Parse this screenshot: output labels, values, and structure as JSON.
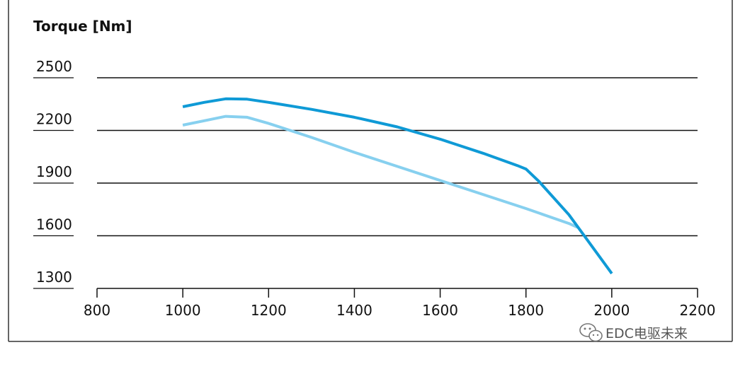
{
  "chart_data": {
    "type": "line",
    "title": "",
    "ylabel": "Torque [Nm]",
    "xlabel": "",
    "xlim": [
      800,
      2200
    ],
    "ylim": [
      1300,
      2500
    ],
    "x_ticks": [
      800,
      1000,
      1200,
      1400,
      1600,
      1800,
      2000,
      2200
    ],
    "y_ticks": [
      1300,
      1600,
      1900,
      2200,
      2500
    ],
    "grid": "horizontal",
    "legend": "none",
    "series": [
      {
        "color": "#0f9ad6",
        "points": [
          [
            1000,
            2335
          ],
          [
            1050,
            2360
          ],
          [
            1100,
            2380
          ],
          [
            1150,
            2378
          ],
          [
            1200,
            2360
          ],
          [
            1300,
            2320
          ],
          [
            1400,
            2275
          ],
          [
            1500,
            2220
          ],
          [
            1600,
            2150
          ],
          [
            1700,
            2070
          ],
          [
            1780,
            2000
          ],
          [
            1800,
            1980
          ],
          [
            1830,
            1910
          ],
          [
            1900,
            1720
          ],
          [
            2000,
            1385
          ]
        ]
      },
      {
        "color": "#87d0ef",
        "points": [
          [
            1000,
            2230
          ],
          [
            1050,
            2255
          ],
          [
            1100,
            2280
          ],
          [
            1150,
            2275
          ],
          [
            1200,
            2240
          ],
          [
            1300,
            2160
          ],
          [
            1400,
            2075
          ],
          [
            1500,
            1995
          ],
          [
            1600,
            1915
          ],
          [
            1700,
            1835
          ],
          [
            1800,
            1755
          ],
          [
            1900,
            1670
          ],
          [
            1920,
            1648
          ]
        ]
      }
    ]
  },
  "watermark": {
    "text": "EDC电驱未来",
    "icon": "wechat-icon"
  }
}
